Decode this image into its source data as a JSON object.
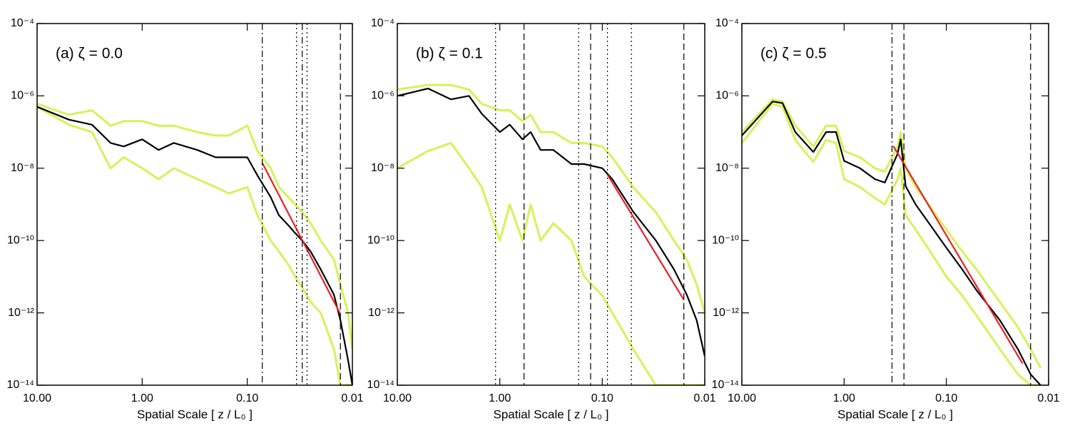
{
  "chart_data": [
    {
      "type": "line",
      "annotation": "(a) ζ = 0.0",
      "xlabel": "Spatial Scale  [ z / L₀ ]",
      "xscale": "log",
      "yscale": "log",
      "xlim": [
        10,
        0.01
      ],
      "ylim": [
        1e-14,
        0.0001
      ],
      "xticks": [
        {
          "value": 10,
          "label": "10.00"
        },
        {
          "value": 1,
          "label": "1.00"
        },
        {
          "value": 0.1,
          "label": "0.10"
        },
        {
          "value": 0.01,
          "label": "0.01"
        }
      ],
      "yticks": [
        {
          "value": 1e-14,
          "label": "10⁻¹⁴"
        },
        {
          "value": 1e-12,
          "label": "10⁻¹²"
        },
        {
          "value": 1e-10,
          "label": "10⁻¹⁰"
        },
        {
          "value": 1e-08,
          "label": "10⁻⁸"
        },
        {
          "value": 1e-06,
          "label": "10⁻⁶"
        },
        {
          "value": 0.0001,
          "label": "10⁻⁴"
        }
      ],
      "series": [
        {
          "color": "#d6f25a",
          "x": [
            10,
            5,
            3,
            2,
            1.5,
            1,
            0.7,
            0.5,
            0.3,
            0.2,
            0.15,
            0.1,
            0.08,
            0.06,
            0.05,
            0.04,
            0.035,
            0.03,
            0.025,
            0.02,
            0.015,
            0.013,
            0.011,
            0.01
          ],
          "values": [
            6e-07,
            3e-07,
            4e-07,
            1.5e-07,
            2e-07,
            2e-07,
            1.5e-07,
            1.5e-07,
            1e-07,
            8e-08,
            8e-08,
            1.5e-07,
            3e-08,
            1e-08,
            3e-09,
            1.5e-09,
            1e-09,
            6e-10,
            3e-10,
            1e-10,
            3e-11,
            6e-12,
            1e-12,
            1e-13
          ]
        },
        {
          "color": "#d6f25a",
          "x": [
            10,
            5,
            3,
            2,
            1.5,
            1,
            0.7,
            0.5,
            0.3,
            0.2,
            0.15,
            0.1,
            0.08,
            0.06,
            0.05,
            0.04,
            0.035,
            0.03,
            0.025,
            0.02,
            0.015,
            0.013,
            0.011,
            0.01
          ],
          "values": [
            5e-07,
            1.6e-07,
            1e-07,
            1e-08,
            2e-08,
            1e-08,
            5e-09,
            1e-08,
            5e-09,
            3e-09,
            2e-09,
            3e-09,
            5e-10,
            1e-10,
            5e-11,
            2e-11,
            1e-11,
            5e-12,
            2e-12,
            1e-12,
            1e-13,
            1e-14,
            1e-14,
            1e-14
          ]
        },
        {
          "color": "#000000",
          "x": [
            10,
            5,
            3,
            2,
            1.5,
            1,
            0.7,
            0.5,
            0.3,
            0.2,
            0.15,
            0.1,
            0.08,
            0.06,
            0.05,
            0.04,
            0.035,
            0.03,
            0.025,
            0.02,
            0.015,
            0.013,
            0.011,
            0.01
          ],
          "values": [
            5e-07,
            2.2e-07,
            1.6e-07,
            5e-08,
            4e-08,
            6.3e-08,
            3.2e-08,
            5e-08,
            3.2e-08,
            2e-08,
            2e-08,
            2e-08,
            6.3e-09,
            1.6e-09,
            5e-10,
            2.5e-10,
            1.6e-10,
            1e-10,
            5e-11,
            1.6e-11,
            3.2e-12,
            6.3e-13,
            5e-14,
            1e-14
          ]
        },
        {
          "color": "#e8202a",
          "x": [
            0.072,
            0.013
          ],
          "values": [
            1.4e-08,
            9.3e-13
          ]
        }
      ],
      "vlines": [
        {
          "x": 0.072,
          "style": "dashdot"
        },
        {
          "x": 0.034,
          "style": "dotted"
        },
        {
          "x": 0.03,
          "style": "dashdot"
        },
        {
          "x": 0.027,
          "style": "dotted"
        },
        {
          "x": 0.013,
          "style": "dashed"
        }
      ]
    },
    {
      "type": "line",
      "annotation": "(b) ζ = 0.1",
      "xlabel": "Spatial Scale  [ z / L₀ ]",
      "xscale": "log",
      "yscale": "log",
      "xlim": [
        10,
        0.01
      ],
      "ylim": [
        1e-14,
        0.0001
      ],
      "xticks": [
        {
          "value": 10,
          "label": "10.00"
        },
        {
          "value": 1,
          "label": "1.00"
        },
        {
          "value": 0.1,
          "label": "0.10"
        },
        {
          "value": 0.01,
          "label": "0.01"
        }
      ],
      "yticks": [
        {
          "value": 1e-14,
          "label": "10⁻¹⁴"
        },
        {
          "value": 1e-12,
          "label": "10⁻¹²"
        },
        {
          "value": 1e-10,
          "label": "10⁻¹⁰"
        },
        {
          "value": 1e-08,
          "label": "10⁻⁸"
        },
        {
          "value": 1e-06,
          "label": "10⁻⁶"
        },
        {
          "value": 0.0001,
          "label": "10⁻⁴"
        }
      ],
      "series": [
        {
          "color": "#d6f25a",
          "x": [
            10,
            5,
            3,
            2,
            1.5,
            1,
            0.8,
            0.6,
            0.5,
            0.4,
            0.3,
            0.2,
            0.15,
            0.1,
            0.08,
            0.05,
            0.03,
            0.02,
            0.015,
            0.012,
            0.01
          ],
          "values": [
            1.5e-06,
            2e-06,
            2e-06,
            1.5e-06,
            6e-07,
            4e-07,
            4e-07,
            2e-07,
            3e-07,
            1e-07,
            1e-07,
            5e-08,
            5e-08,
            4e-08,
            2e-08,
            3e-09,
            6e-10,
            1e-10,
            3e-11,
            6e-12,
            1e-12
          ]
        },
        {
          "color": "#d6f25a",
          "x": [
            10,
            5,
            3,
            2,
            1.5,
            1,
            0.8,
            0.6,
            0.5,
            0.4,
            0.3,
            0.2,
            0.15,
            0.1,
            0.08,
            0.05,
            0.03,
            0.02,
            0.015,
            0.012,
            0.01
          ],
          "values": [
            1e-08,
            3e-08,
            5e-08,
            1e-08,
            3e-09,
            1e-10,
            1e-09,
            1e-10,
            1e-09,
            1e-10,
            3e-10,
            1e-10,
            1e-11,
            3e-12,
            1e-12,
            1e-13,
            1e-14,
            1e-14,
            1e-14,
            1e-14,
            1e-14
          ]
        },
        {
          "color": "#000000",
          "x": [
            10,
            5,
            3,
            2,
            1.5,
            1,
            0.8,
            0.6,
            0.5,
            0.4,
            0.3,
            0.2,
            0.15,
            0.1,
            0.08,
            0.05,
            0.03,
            0.02,
            0.015,
            0.012,
            0.01
          ],
          "values": [
            1e-06,
            1.6e-06,
            8e-07,
            1e-06,
            3.2e-07,
            1e-07,
            1.6e-07,
            6.3e-08,
            1e-07,
            3.2e-08,
            3.2e-08,
            1.3e-08,
            1.3e-08,
            1e-08,
            5e-09,
            6.3e-10,
            1e-10,
            1.6e-11,
            3.2e-12,
            6.3e-13,
            6.3e-14
          ]
        },
        {
          "color": "#e8202a",
          "x": [
            0.089,
            0.016
          ],
          "values": [
            6.6e-09,
            2.3e-12
          ]
        }
      ],
      "vlines": [
        {
          "x": 1.1,
          "style": "dotted"
        },
        {
          "x": 0.58,
          "style": "dashed"
        },
        {
          "x": 0.17,
          "style": "dotted"
        },
        {
          "x": 0.13,
          "style": "dashed"
        },
        {
          "x": 0.089,
          "style": "dotted"
        },
        {
          "x": 0.052,
          "style": "dotted"
        },
        {
          "x": 0.016,
          "style": "dashed"
        }
      ]
    },
    {
      "type": "line",
      "annotation": "(c) ζ = 0.5",
      "xlabel": "Spatial Scale  [ z / L₀ ]",
      "xscale": "log",
      "yscale": "log",
      "xlim": [
        10,
        0.01
      ],
      "ylim": [
        1e-14,
        0.0001
      ],
      "xticks": [
        {
          "value": 10,
          "label": "10.00"
        },
        {
          "value": 1,
          "label": "1.00"
        },
        {
          "value": 0.1,
          "label": "0.10"
        },
        {
          "value": 0.01,
          "label": "0.01"
        }
      ],
      "yticks": [
        {
          "value": 1e-14,
          "label": "10⁻¹⁴"
        },
        {
          "value": 1e-12,
          "label": "10⁻¹²"
        },
        {
          "value": 1e-10,
          "label": "10⁻¹⁰"
        },
        {
          "value": 1e-08,
          "label": "10⁻⁸"
        },
        {
          "value": 1e-06,
          "label": "10⁻⁶"
        },
        {
          "value": 0.0001,
          "label": "10⁻⁴"
        }
      ],
      "series": [
        {
          "color": "#d6f25a",
          "x": [
            10,
            5,
            4,
            3,
            2,
            1.5,
            1.2,
            1,
            0.7,
            0.5,
            0.4,
            0.3,
            0.28,
            0.25,
            0.2,
            0.15,
            0.1,
            0.07,
            0.05,
            0.03,
            0.02,
            0.015,
            0.012
          ],
          "values": [
            1e-07,
            8e-07,
            7e-07,
            1.5e-07,
            4e-08,
            1.5e-07,
            1.5e-07,
            3e-08,
            2e-08,
            1e-08,
            8e-09,
            4e-08,
            1e-07,
            1e-08,
            3e-09,
            1e-09,
            2e-10,
            5e-11,
            1.5e-11,
            2e-12,
            4e-13,
            1e-13,
            3e-14
          ]
        },
        {
          "color": "#d6f25a",
          "x": [
            10,
            5,
            4,
            3,
            2,
            1.5,
            1.2,
            1,
            0.7,
            0.5,
            0.4,
            0.3,
            0.28,
            0.25,
            0.2,
            0.15,
            0.1,
            0.07,
            0.05,
            0.03,
            0.02,
            0.015,
            0.012
          ],
          "values": [
            5e-08,
            6e-07,
            5e-07,
            6e-08,
            1.5e-08,
            6e-08,
            5e-08,
            5e-09,
            3e-09,
            1.5e-09,
            1e-09,
            5e-09,
            1e-08,
            5e-10,
            2e-10,
            6e-11,
            1e-11,
            3e-12,
            8e-13,
            1e-13,
            2e-14,
            1e-14,
            1e-14
          ]
        },
        {
          "color": "#000000",
          "x": [
            10,
            5,
            4,
            3,
            2,
            1.5,
            1.2,
            1,
            0.7,
            0.5,
            0.4,
            0.3,
            0.28,
            0.25,
            0.2,
            0.15,
            0.1,
            0.07,
            0.05,
            0.03,
            0.02,
            0.015,
            0.012
          ],
          "values": [
            8e-08,
            7e-07,
            6.3e-07,
            1e-07,
            2.8e-08,
            1e-07,
            1e-07,
            1.6e-08,
            1e-08,
            5e-09,
            4e-09,
            2.5e-08,
            6.3e-08,
            3.2e-09,
            1e-09,
            3.2e-10,
            6.3e-11,
            1.6e-11,
            4e-12,
            6.3e-13,
            1e-13,
            2e-14,
            1e-14
          ]
        },
        {
          "color": "#e8202a",
          "x": [
            0.33,
            0.018
          ],
          "values": [
            4.1e-08,
            4e-14
          ]
        }
      ],
      "vlines": [
        {
          "x": 0.34,
          "style": "dashdot"
        },
        {
          "x": 0.26,
          "style": "dashed"
        },
        {
          "x": 0.015,
          "style": "dashed"
        }
      ]
    }
  ]
}
